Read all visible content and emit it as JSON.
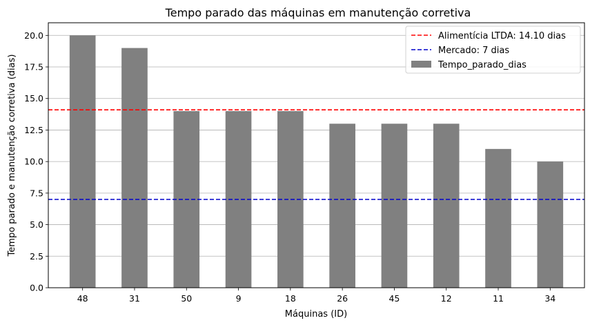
{
  "chart_data": {
    "type": "bar",
    "title": "Tempo parado das máquinas em manutenção corretiva",
    "xlabel": "Máquinas (ID)",
    "ylabel": "Tempo parado e manutenção corretiva (dias)",
    "categories": [
      "48",
      "31",
      "50",
      "9",
      "18",
      "26",
      "45",
      "12",
      "11",
      "34"
    ],
    "series": [
      {
        "name": "Tempo_parado_dias",
        "values": [
          20,
          19,
          14,
          14,
          14,
          13,
          13,
          13,
          11,
          10
        ],
        "color": "#808080"
      }
    ],
    "reference_lines": [
      {
        "label": "Alimentícia LTDA: 14.10 dias",
        "value": 14.1,
        "color": "#ff0000",
        "style": "dashed"
      },
      {
        "label": "Mercado: 7 dias",
        "value": 7,
        "color": "#0000cc",
        "style": "dashed"
      }
    ],
    "ylim": [
      0,
      21
    ],
    "yticks": [
      "0.0",
      "2.5",
      "5.0",
      "7.5",
      "10.0",
      "12.5",
      "15.0",
      "17.5",
      "20.0"
    ],
    "grid": "y",
    "legend_position": "top-right"
  }
}
